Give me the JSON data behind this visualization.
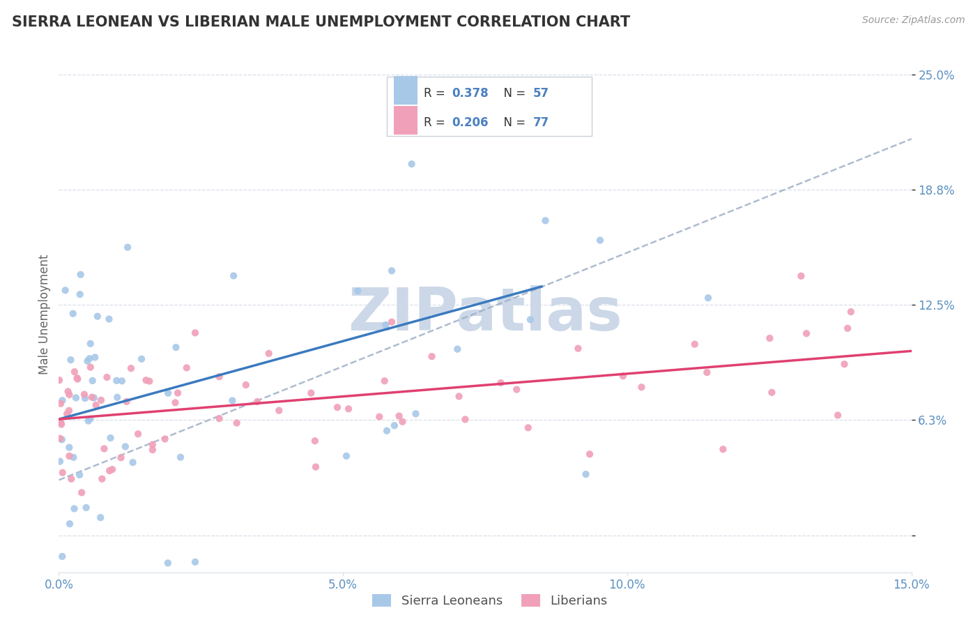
{
  "title": "SIERRA LEONEAN VS LIBERIAN MALE UNEMPLOYMENT CORRELATION CHART",
  "source": "Source: ZipAtlas.com",
  "ylabel": "Male Unemployment",
  "xlim": [
    0.0,
    0.15
  ],
  "ylim": [
    -0.02,
    0.26
  ],
  "xticks": [
    0.0,
    0.05,
    0.1,
    0.15
  ],
  "xticklabels": [
    "0.0%",
    "5.0%",
    "10.0%",
    "15.0%"
  ],
  "ytick_positions": [
    0.0,
    0.0625,
    0.125,
    0.1875,
    0.25
  ],
  "ytick_labels": [
    "",
    "6.3%",
    "12.5%",
    "18.8%",
    "25.0%"
  ],
  "sierra_R": 0.378,
  "sierra_N": 57,
  "liberian_R": 0.206,
  "liberian_N": 77,
  "sierra_color": "#a8c8e8",
  "liberian_color": "#f0a0b8",
  "sierra_line_color": "#3a7abf",
  "liberian_line_color": "#e04070",
  "overall_line_color": "#a0b0c8",
  "watermark_text": "ZIPatlas",
  "watermark_color": "#ccd8e8",
  "background_color": "#ffffff",
  "title_color": "#333333",
  "tick_color": "#5a90c0",
  "grid_color": "#d8dfe8",
  "legend_text_color": "#333333",
  "legend_val_color": "#4a80c0",
  "legend_n_color": "#4a80c0",
  "legend_border_color": "#c8d0d8",
  "sierra_line_x0": 0.0,
  "sierra_line_y0": 0.063,
  "sierra_line_x1": 0.085,
  "sierra_line_y1": 0.135,
  "liberian_line_x0": 0.0,
  "liberian_line_y0": 0.063,
  "liberian_line_x1": 0.15,
  "liberian_line_y1": 0.1,
  "overall_line_x0": 0.0,
  "overall_line_y0": 0.03,
  "overall_line_x1": 0.15,
  "overall_line_y1": 0.215
}
